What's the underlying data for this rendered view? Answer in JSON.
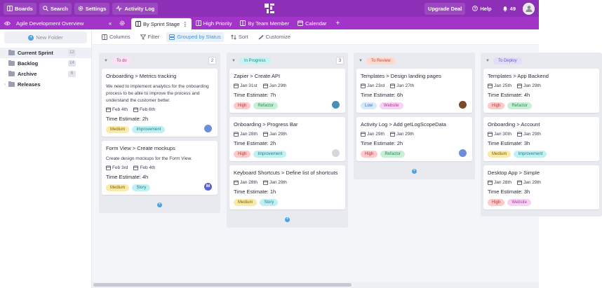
{
  "topbar": {
    "boards": "Boards",
    "search": "Search",
    "settings": "Settings",
    "activity_log": "Activity Log",
    "upgrade": "Upgrade Deal",
    "help": "Help",
    "notifications": "49",
    "brand_color": "#8e2fb8"
  },
  "subbar": {
    "project": "Agile Development Overview",
    "tabs": [
      {
        "label": "By Sprint Stage"
      },
      {
        "label": "High Priority"
      },
      {
        "label": "By Team Member"
      },
      {
        "label": "Calendar"
      }
    ]
  },
  "sidebar": {
    "new_folder": "New Folder",
    "folders": [
      {
        "label": "Current Sprint",
        "count": "12"
      },
      {
        "label": "Backlog",
        "count": "14"
      },
      {
        "label": "Archive",
        "count": "6"
      },
      {
        "label": "Releases",
        "count": ""
      }
    ]
  },
  "toolbar": {
    "columns": "Columns",
    "filter": "Filter",
    "grouped": "Grouped by Status",
    "sort": "Sort",
    "customize": "Customize"
  },
  "columns": [
    {
      "status": "To do",
      "count": "2",
      "color": "#fbe3f3",
      "text_color": "#b0408f",
      "cards": [
        {
          "title": "Onboarding > Metrics tracking",
          "desc": "We need to implement analytics for the onboarding process to be able to improve the process and understand the customer better.",
          "start": "Feb 4th",
          "end": "Feb 6th",
          "estimate": "Time Estimate: 2h",
          "tags": [
            {
              "label": "Medium",
              "bg": "#fbe9a6",
              "fg": "#7a6210"
            },
            {
              "label": "Improvement",
              "bg": "#bff0f3",
              "fg": "#1f7f86"
            }
          ],
          "avatar": "#6b8fd6"
        },
        {
          "title": "Form View > Create mockups",
          "desc": "Create design mockups for the Form View.",
          "start": "Feb 3rd",
          "end": "Feb 4th",
          "estimate": "Time Estimate: 4h",
          "tags": [
            {
              "label": "Medium",
              "bg": "#fbe9a6",
              "fg": "#7a6210"
            },
            {
              "label": "Story",
              "bg": "#bff0f3",
              "fg": "#1f7f86"
            }
          ],
          "avatar": "#5b5fd8",
          "avatar_text": "IM"
        }
      ]
    },
    {
      "status": "In Progress",
      "count": "3",
      "color": "#c9f3f3",
      "text_color": "#1f8a8f",
      "cards": [
        {
          "title": "Zapier > Create API",
          "desc": "",
          "start": "Jan 31st",
          "end": "Jan 29th",
          "estimate": "Time Estimate: 7h",
          "tags": [
            {
              "label": "High",
              "bg": "#ffc9c9",
              "fg": "#b33b3b"
            },
            {
              "label": "Refactor",
              "bg": "#c8f0d6",
              "fg": "#2c8a4c"
            }
          ],
          "avatar": "#4a8fb5"
        },
        {
          "title": "Onboarding > Progress Bar",
          "desc": "",
          "start": "Jan 28th",
          "end": "Jan 29th",
          "estimate": "Time Estimate: 2h",
          "tags": [
            {
              "label": "High",
              "bg": "#ffc9c9",
              "fg": "#b33b3b"
            },
            {
              "label": "Improvement",
              "bg": "#bff0f3",
              "fg": "#1f7f86"
            }
          ],
          "avatar": "#d6d6dc"
        },
        {
          "title": "Keyboard Shortcuts > Define list of shortcuts",
          "desc": "",
          "start": "Jan 28th",
          "end": "Jan 29th",
          "estimate": "Time Estimate: 1h",
          "tags": [
            {
              "label": "Medium",
              "bg": "#fbe9a6",
              "fg": "#7a6210"
            },
            {
              "label": "Story",
              "bg": "#bff0f3",
              "fg": "#1f7f86"
            }
          ],
          "avatar": ""
        }
      ]
    },
    {
      "status": "To Review",
      "count": "",
      "color": "#ffd9d0",
      "text_color": "#c24d2f",
      "cards": [
        {
          "title": "Templates > Design landing pages",
          "desc": "",
          "start": "Jan 23rd",
          "end": "Jan 27th",
          "estimate": "Time Estimate: 6h",
          "tags": [
            {
              "label": "Low",
              "bg": "#d8e8fb",
              "fg": "#3f6fae"
            },
            {
              "label": "Website",
              "bg": "#f7d2f4",
              "fg": "#a33e9a"
            }
          ],
          "avatar": "#7a4a2b"
        },
        {
          "title": "Activity Log > Add getLogScopeData",
          "desc": "",
          "start": "Jan 29th",
          "end": "Jan 29th",
          "estimate": "Time Estimate: 2h",
          "tags": [
            {
              "label": "High",
              "bg": "#ffc9c9",
              "fg": "#b33b3b"
            },
            {
              "label": "Refactor",
              "bg": "#c8f0d6",
              "fg": "#2c8a4c"
            }
          ],
          "avatar": "#6b8fd6"
        }
      ]
    },
    {
      "status": "To Deploy",
      "count": "",
      "color": "#e2def9",
      "text_color": "#6a55c4",
      "cards": [
        {
          "title": "Templates > App Backend",
          "desc": "",
          "start": "Jan 25th",
          "end": "Jan 29th",
          "estimate": "Time Estimate: 4h",
          "tags": [
            {
              "label": "High",
              "bg": "#ffc9c9",
              "fg": "#b33b3b"
            },
            {
              "label": "Refactor",
              "bg": "#c8f0d6",
              "fg": "#2c8a4c"
            }
          ],
          "avatar": ""
        },
        {
          "title": "Onboarding > Account",
          "desc": "",
          "start": "Jan 30th",
          "end": "Jan 29th",
          "estimate": "Time Estimate: 3h",
          "tags": [
            {
              "label": "Medium",
              "bg": "#fbe9a6",
              "fg": "#7a6210"
            },
            {
              "label": "Improvement",
              "bg": "#bff0f3",
              "fg": "#1f7f86"
            }
          ],
          "avatar": ""
        },
        {
          "title": "Desktop App > Simple",
          "desc": "",
          "start": "Jan 28th",
          "end": "Jan 29th",
          "estimate": "Time Estimate: 3h",
          "tags": [
            {
              "label": "High",
              "bg": "#ffc9c9",
              "fg": "#b33b3b"
            },
            {
              "label": "Website",
              "bg": "#f7d2f4",
              "fg": "#a33e9a"
            }
          ],
          "avatar": ""
        }
      ]
    }
  ]
}
